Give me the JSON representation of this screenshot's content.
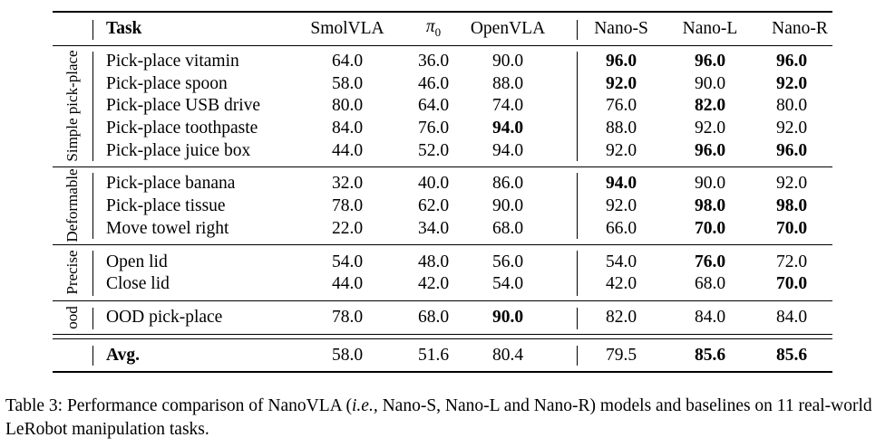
{
  "table": {
    "headers": {
      "task": "Task",
      "smolvla": "SmolVLA",
      "pi0_symbol": "π",
      "pi0_sub": "0",
      "openvla": "OpenVLA",
      "nano_s": "Nano-S",
      "nano_l": "Nano-L",
      "nano_r": "Nano-R"
    },
    "groups": [
      {
        "label": "Simple pick-place",
        "rows": [
          {
            "task": "Pick-place vitamin",
            "values": [
              "64.0",
              "36.0",
              "90.0",
              "96.0",
              "96.0",
              "96.0"
            ],
            "bold": [
              false,
              false,
              false,
              true,
              true,
              true
            ]
          },
          {
            "task": "Pick-place spoon",
            "values": [
              "58.0",
              "46.0",
              "88.0",
              "92.0",
              "90.0",
              "92.0"
            ],
            "bold": [
              false,
              false,
              false,
              true,
              false,
              true
            ]
          },
          {
            "task": "Pick-place USB drive",
            "values": [
              "80.0",
              "64.0",
              "74.0",
              "76.0",
              "82.0",
              "80.0"
            ],
            "bold": [
              false,
              false,
              false,
              false,
              true,
              false
            ]
          },
          {
            "task": "Pick-place toothpaste",
            "values": [
              "84.0",
              "76.0",
              "94.0",
              "88.0",
              "92.0",
              "92.0"
            ],
            "bold": [
              false,
              false,
              true,
              false,
              false,
              false
            ]
          },
          {
            "task": "Pick-place juice box",
            "values": [
              "44.0",
              "52.0",
              "94.0",
              "92.0",
              "96.0",
              "96.0"
            ],
            "bold": [
              false,
              false,
              false,
              false,
              true,
              true
            ]
          }
        ]
      },
      {
        "label": "Deformable",
        "rows": [
          {
            "task": "Pick-place banana",
            "values": [
              "32.0",
              "40.0",
              "86.0",
              "94.0",
              "90.0",
              "92.0"
            ],
            "bold": [
              false,
              false,
              false,
              true,
              false,
              false
            ]
          },
          {
            "task": "Pick-place tissue",
            "values": [
              "78.0",
              "62.0",
              "90.0",
              "92.0",
              "98.0",
              "98.0"
            ],
            "bold": [
              false,
              false,
              false,
              false,
              true,
              true
            ]
          },
          {
            "task": "Move towel right",
            "values": [
              "22.0",
              "34.0",
              "68.0",
              "66.0",
              "70.0",
              "70.0"
            ],
            "bold": [
              false,
              false,
              false,
              false,
              true,
              true
            ]
          }
        ]
      },
      {
        "label": "Precise",
        "rows": [
          {
            "task": "Open lid",
            "values": [
              "54.0",
              "48.0",
              "56.0",
              "54.0",
              "76.0",
              "72.0"
            ],
            "bold": [
              false,
              false,
              false,
              false,
              true,
              false
            ]
          },
          {
            "task": "Close lid",
            "values": [
              "44.0",
              "42.0",
              "54.0",
              "42.0",
              "68.0",
              "70.0"
            ],
            "bold": [
              false,
              false,
              false,
              false,
              false,
              true
            ]
          }
        ]
      },
      {
        "label": "ood",
        "rows": [
          {
            "task": "OOD pick-place",
            "values": [
              "78.0",
              "68.0",
              "90.0",
              "82.0",
              "84.0",
              "84.0"
            ],
            "bold": [
              false,
              false,
              true,
              false,
              false,
              false
            ]
          }
        ]
      }
    ],
    "average": {
      "task": "Avg.",
      "values": [
        "58.0",
        "51.6",
        "80.4",
        "79.5",
        "85.6",
        "85.6"
      ],
      "bold": [
        false,
        false,
        false,
        false,
        true,
        true
      ]
    }
  },
  "caption": {
    "prefix": "Table 3:  Performance comparison of NanoVLA (",
    "italic": "i.e.,",
    "suffix": " Nano-S, Nano-L and Nano-R) models and baselines on 11 real-world LeRobot manipulation tasks."
  }
}
